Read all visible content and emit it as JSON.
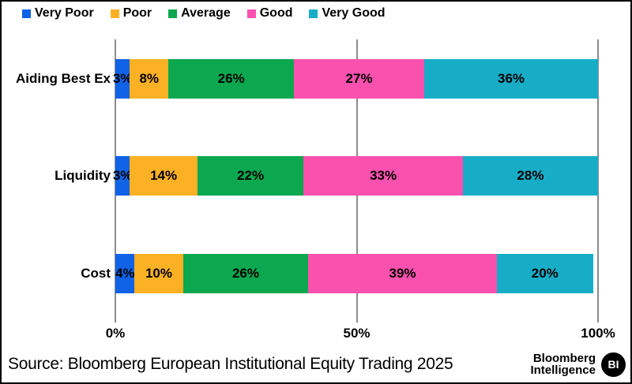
{
  "chart_data": {
    "type": "bar",
    "orientation": "horizontal-stacked",
    "title": "",
    "categories": [
      "Aiding Best Ex",
      "Liquidity",
      "Cost"
    ],
    "series": [
      {
        "name": "Very Poor",
        "color": "#1062E6",
        "values": [
          3,
          3,
          4
        ]
      },
      {
        "name": "Poor",
        "color": "#FCB125",
        "values": [
          8,
          14,
          10
        ]
      },
      {
        "name": "Average",
        "color": "#0BA84F",
        "values": [
          26,
          22,
          26
        ]
      },
      {
        "name": "Good",
        "color": "#FB51AE",
        "values": [
          27,
          33,
          39
        ]
      },
      {
        "name": "Very Good",
        "color": "#17ADC6",
        "values": [
          36,
          28,
          20
        ]
      }
    ],
    "value_label_format": "{v}%",
    "x_ticks": [
      {
        "label": "0%",
        "pos": 0
      },
      {
        "label": "50%",
        "pos": 50
      },
      {
        "label": "100%",
        "pos": 100
      }
    ],
    "xlim": [
      0,
      100
    ],
    "grid": "vertical",
    "gridline_color": "#8c8c8c",
    "legend_position": "top-left",
    "text_color": "#000000"
  },
  "footer": {
    "source": "Source: Bloomberg European Institutional Equity Trading 2025",
    "logo": {
      "line1": "Bloomberg",
      "line2": "Intelligence",
      "badge": "BI"
    }
  }
}
